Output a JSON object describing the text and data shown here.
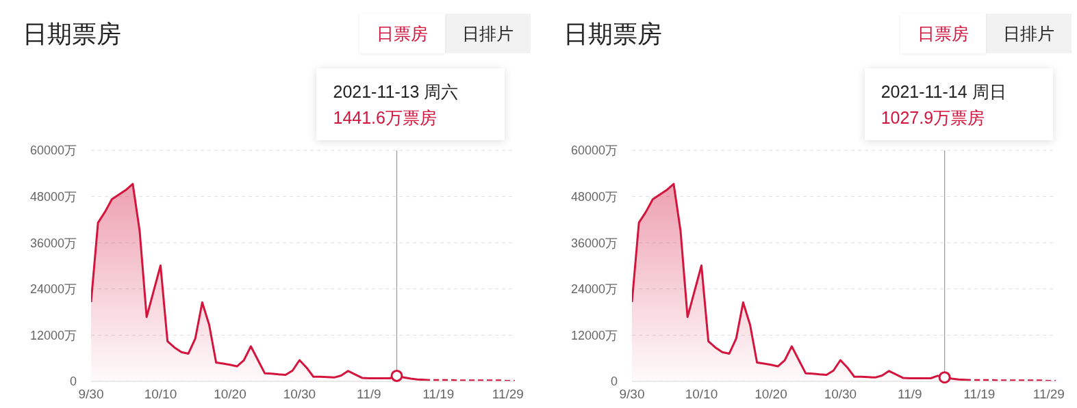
{
  "chart_data": [
    {
      "type": "area",
      "title": "日期票房",
      "annotations": [
        "日票房",
        "日排片",
        "2021-11-13 周六",
        "1441.6万票房"
      ],
      "x": [
        "2021-09-30",
        "2021-10-01",
        "2021-10-02",
        "2021-10-03",
        "2021-10-04",
        "2021-10-05",
        "2021-10-06",
        "2021-10-07",
        "2021-10-08",
        "2021-10-09",
        "2021-10-10",
        "2021-10-11",
        "2021-10-12",
        "2021-10-13",
        "2021-10-14",
        "2021-10-15",
        "2021-10-16",
        "2021-10-17",
        "2021-10-18",
        "2021-10-19",
        "2021-10-20",
        "2021-10-21",
        "2021-10-22",
        "2021-10-23",
        "2021-10-24",
        "2021-10-25",
        "2021-10-26",
        "2021-10-27",
        "2021-10-28",
        "2021-10-29",
        "2021-10-30",
        "2021-10-31",
        "2021-11-01",
        "2021-11-02",
        "2021-11-03",
        "2021-11-04",
        "2021-11-05",
        "2021-11-06",
        "2021-11-07",
        "2021-11-08",
        "2021-11-09",
        "2021-11-10",
        "2021-11-11",
        "2021-11-12",
        "2021-11-13",
        "2021-11-14",
        "2021-11-15",
        "2021-11-16",
        "2021-11-17",
        "2021-11-18",
        "2021-11-19",
        "2021-11-20",
        "2021-11-21",
        "2021-11-22",
        "2021-11-23",
        "2021-11-24",
        "2021-11-25",
        "2021-11-26",
        "2021-11-27",
        "2021-11-28",
        "2021-11-29",
        "2021-11-30"
      ],
      "series": [
        {
          "color": "#d3143c",
          "values": [
            20600,
            41200,
            44000,
            47300,
            48500,
            49700,
            51300,
            39000,
            16700,
            23400,
            30100,
            10400,
            8800,
            7600,
            7200,
            11100,
            20500,
            14700,
            4900,
            4600,
            4300,
            3900,
            5500,
            9100,
            5600,
            2100,
            2000,
            1800,
            1700,
            2800,
            5500,
            3600,
            1200,
            1200,
            1100,
            1000,
            1500,
            2700,
            1800,
            900,
            800,
            800,
            800,
            800,
            1441.6,
            1027.9,
            700,
            500,
            400,
            null,
            null,
            null,
            null,
            null,
            null,
            null,
            null,
            null,
            null,
            null,
            null,
            null
          ]
        },
        {
          "type": "line",
          "color": "#d3143c",
          "line_style": "dashed",
          "values": [
            null,
            null,
            null,
            null,
            null,
            null,
            null,
            null,
            null,
            null,
            null,
            null,
            null,
            null,
            null,
            null,
            null,
            null,
            null,
            null,
            null,
            null,
            null,
            null,
            null,
            null,
            null,
            null,
            null,
            null,
            null,
            null,
            null,
            null,
            null,
            null,
            null,
            null,
            null,
            null,
            null,
            null,
            null,
            null,
            null,
            null,
            null,
            null,
            400,
            300,
            300,
            300,
            300,
            200,
            200,
            200,
            200,
            200,
            200,
            200,
            100,
            100
          ]
        }
      ],
      "xlim": [
        "2021-09-30",
        "2021-11-30"
      ],
      "xticks": [
        {
          "value": "2021-09-30",
          "label": "9/30"
        },
        {
          "value": "2021-10-10",
          "label": "10/10"
        },
        {
          "value": "2021-10-20",
          "label": "10/20"
        },
        {
          "value": "2021-10-30",
          "label": "10/30"
        },
        {
          "value": "2021-11-09",
          "label": "11/9"
        },
        {
          "value": "2021-11-19",
          "label": "11/19"
        },
        {
          "value": "2021-11-29",
          "label": "11/29"
        }
      ],
      "ylim": [
        0,
        60000
      ],
      "yticks": [
        0,
        {
          "value": 12000,
          "label": "12000万"
        },
        {
          "value": 24000,
          "label": "24000万"
        },
        {
          "value": 36000,
          "label": "36000万"
        },
        {
          "value": 48000,
          "label": "48000万"
        },
        {
          "value": 60000,
          "label": "60000万"
        }
      ],
      "grid": "y",
      "marker": "none",
      "ref_lines": [
        {
          "axis": "x",
          "value": "2021-11-13",
          "color": "#999999"
        }
      ]
    },
    {
      "type": "area",
      "title": "日期票房",
      "annotations": [
        "日票房",
        "日排片",
        "2021-11-14 周日",
        "1027.9万票房"
      ],
      "x": [
        "2021-09-30",
        "2021-10-01",
        "2021-10-02",
        "2021-10-03",
        "2021-10-04",
        "2021-10-05",
        "2021-10-06",
        "2021-10-07",
        "2021-10-08",
        "2021-10-09",
        "2021-10-10",
        "2021-10-11",
        "2021-10-12",
        "2021-10-13",
        "2021-10-14",
        "2021-10-15",
        "2021-10-16",
        "2021-10-17",
        "2021-10-18",
        "2021-10-19",
        "2021-10-20",
        "2021-10-21",
        "2021-10-22",
        "2021-10-23",
        "2021-10-24",
        "2021-10-25",
        "2021-10-26",
        "2021-10-27",
        "2021-10-28",
        "2021-10-29",
        "2021-10-30",
        "2021-10-31",
        "2021-11-01",
        "2021-11-02",
        "2021-11-03",
        "2021-11-04",
        "2021-11-05",
        "2021-11-06",
        "2021-11-07",
        "2021-11-08",
        "2021-11-09",
        "2021-11-10",
        "2021-11-11",
        "2021-11-12",
        "2021-11-13",
        "2021-11-14",
        "2021-11-15",
        "2021-11-16",
        "2021-11-17",
        "2021-11-18",
        "2021-11-19",
        "2021-11-20",
        "2021-11-21",
        "2021-11-22",
        "2021-11-23",
        "2021-11-24",
        "2021-11-25",
        "2021-11-26",
        "2021-11-27",
        "2021-11-28",
        "2021-11-29",
        "2021-11-30"
      ],
      "series": [
        {
          "color": "#d3143c",
          "values": [
            20600,
            41200,
            44000,
            47300,
            48500,
            49700,
            51300,
            39000,
            16700,
            23400,
            30100,
            10400,
            8800,
            7600,
            7200,
            11100,
            20500,
            14700,
            4900,
            4600,
            4300,
            3900,
            5500,
            9100,
            5600,
            2100,
            2000,
            1800,
            1700,
            2800,
            5500,
            3600,
            1200,
            1200,
            1100,
            1000,
            1500,
            2700,
            1800,
            900,
            800,
            800,
            800,
            800,
            1441.6,
            1027.9,
            700,
            500,
            400,
            null,
            null,
            null,
            null,
            null,
            null,
            null,
            null,
            null,
            null,
            null,
            null,
            null
          ]
        },
        {
          "type": "line",
          "color": "#d3143c",
          "line_style": "dashed",
          "values": [
            null,
            null,
            null,
            null,
            null,
            null,
            null,
            null,
            null,
            null,
            null,
            null,
            null,
            null,
            null,
            null,
            null,
            null,
            null,
            null,
            null,
            null,
            null,
            null,
            null,
            null,
            null,
            null,
            null,
            null,
            null,
            null,
            null,
            null,
            null,
            null,
            null,
            null,
            null,
            null,
            null,
            null,
            null,
            null,
            null,
            null,
            null,
            null,
            400,
            300,
            300,
            300,
            300,
            200,
            200,
            200,
            200,
            200,
            200,
            200,
            100,
            100
          ]
        }
      ],
      "xlim": [
        "2021-09-30",
        "2021-11-30"
      ],
      "xticks": [
        {
          "value": "2021-09-30",
          "label": "9/30"
        },
        {
          "value": "2021-10-10",
          "label": "10/10"
        },
        {
          "value": "2021-10-20",
          "label": "10/20"
        },
        {
          "value": "2021-10-30",
          "label": "10/30"
        },
        {
          "value": "2021-11-09",
          "label": "11/9"
        },
        {
          "value": "2021-11-19",
          "label": "11/19"
        },
        {
          "value": "2021-11-29",
          "label": "11/29"
        }
      ],
      "ylim": [
        0,
        60000
      ],
      "yticks": [
        0,
        {
          "value": 12000,
          "label": "12000万"
        },
        {
          "value": 24000,
          "label": "24000万"
        },
        {
          "value": 36000,
          "label": "36000万"
        },
        {
          "value": 48000,
          "label": "48000万"
        },
        {
          "value": 60000,
          "label": "60000万"
        }
      ],
      "grid": "y",
      "marker": "none",
      "ref_lines": [
        {
          "axis": "x",
          "value": "2021-11-14",
          "color": "#999999"
        }
      ]
    }
  ]
}
